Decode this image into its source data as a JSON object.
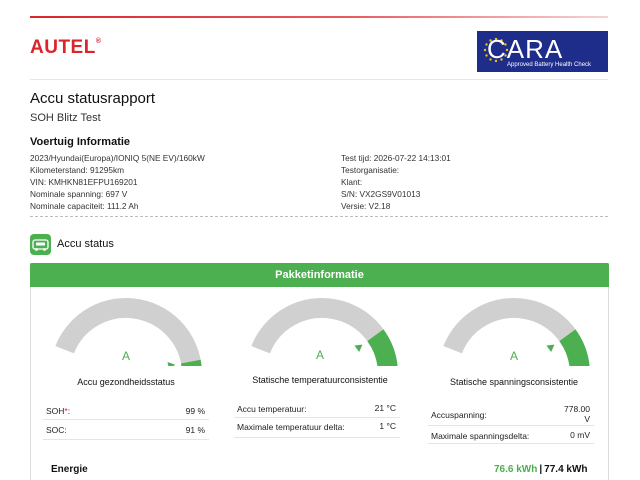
{
  "header": {
    "brand": "AUTEL",
    "brand_mark": "®",
    "cara_title": "CARA",
    "cara_subtitle": "Approved Battery Health Check"
  },
  "report": {
    "title": "Accu statusrapport",
    "subtitle": "SOH Blitz Test"
  },
  "vehicle": {
    "heading": "Voertuig Informatie",
    "left": [
      "2023/Hyundai(Europa)/IONIQ 5(NE EV)/160kW",
      "Kilometerstand: 91295km",
      "VIN: KMHKN81EFPU169201",
      "Nominale spanning: 697 V",
      "Nominale capaciteit: 111.2 Ah"
    ],
    "right": [
      "Test tijd: 2026-07-22 14:13:01",
      "Testorganisatie:",
      "Klant:",
      "S/N: VX2GS9V01013",
      "Versie: V2.18"
    ]
  },
  "status": {
    "heading": "Accu status",
    "panel_title": "Pakketinformatie",
    "gauges": [
      {
        "grade": "A",
        "label": "Accu gezondheidsstatus",
        "level": 0.94
      },
      {
        "grade": "A",
        "label": "Statische temperatuurconsistentie",
        "level": 0.8
      },
      {
        "grade": "A",
        "label": "Statische spanningsconsistentie",
        "level": 0.8
      }
    ],
    "health_table": {
      "soh_label": "SOH",
      "soh_req": "*",
      "soh_colon": ":",
      "soh_value": "99 %",
      "soc_label": "SOC:",
      "soc_value": "91 %"
    },
    "temp_table": {
      "t1_label": "Accu temperatuur:",
      "t1_value": "21 °C",
      "t2_label": "Maximale temperatuur delta:",
      "t2_value": "1 °C"
    },
    "volt_table": {
      "v1_label": "Accuspanning:",
      "v1_value_a": "778.00",
      "v1_value_b": "V",
      "v2_label": "Maximale spanningsdelta:",
      "v2_value": "0 mV"
    },
    "energy": {
      "label": "Energie",
      "value_green": "76.6 kWh",
      "separator": "|",
      "value_total": "77.4 kWh"
    }
  },
  "colors": {
    "brand_red": "#d9262c",
    "good_green": "#4caf50",
    "gauge_grey": "#d0d0d0",
    "cara_blue": "#1e2c8a"
  }
}
